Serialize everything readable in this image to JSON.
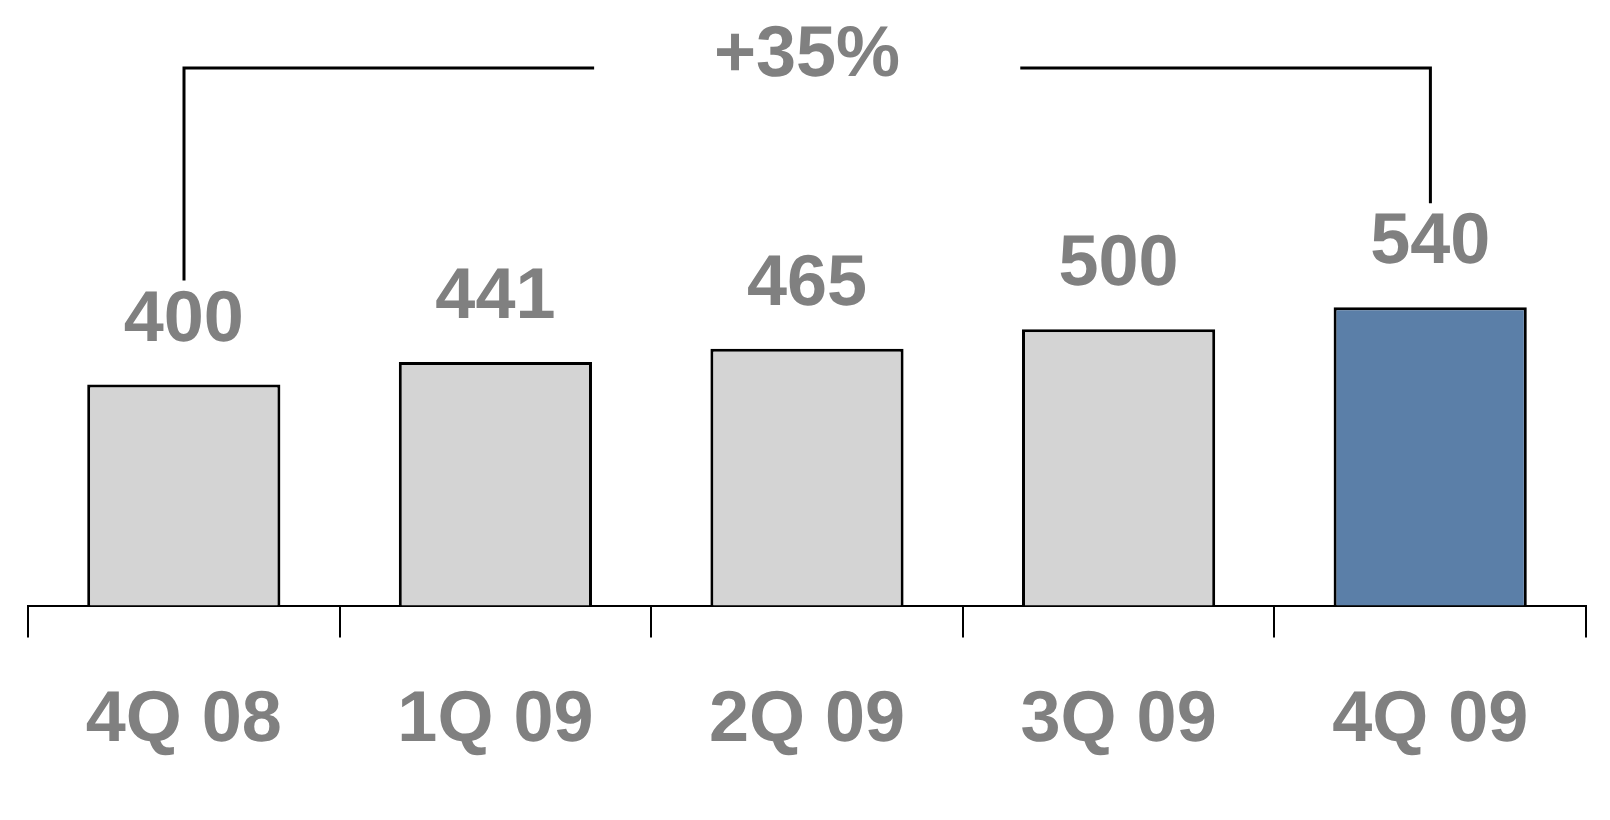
{
  "chart_data": {
    "type": "bar",
    "categories": [
      "4Q 08",
      "1Q 09",
      "2Q 09",
      "3Q 09",
      "4Q 09"
    ],
    "values": [
      400,
      441,
      465,
      500,
      540
    ],
    "colors": [
      "#d4d4d4",
      "#d4d4d4",
      "#d4d4d4",
      "#d4d4d4",
      "#5b7fa8"
    ],
    "data_labels": true,
    "annotations": [
      "+35%"
    ],
    "grid": false,
    "legend": false
  }
}
